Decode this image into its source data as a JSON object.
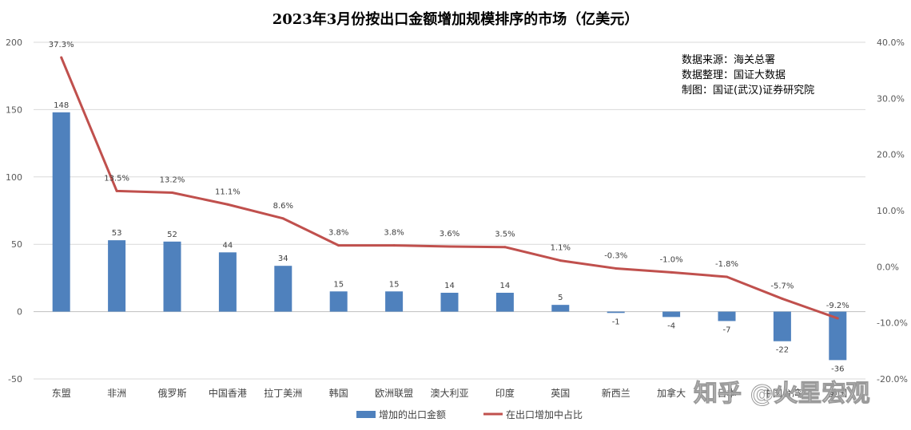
{
  "chart_data": {
    "type": "bar",
    "title": "2023年3月份按出口金额增加规模排序的市场（亿美元）",
    "categories": [
      "东盟",
      "非洲",
      "俄罗斯",
      "中国香港",
      "拉丁美洲",
      "韩国",
      "欧洲联盟",
      "澳大利亚",
      "印度",
      "英国",
      "新西兰",
      "加拿大",
      "日本",
      "中国台湾",
      "美国"
    ],
    "series": [
      {
        "name": "增加的出口金额",
        "type": "bar",
        "axis": "left",
        "color": "#4f81bd",
        "values": [
          148,
          53,
          52,
          44,
          34,
          15,
          15,
          14,
          14,
          5,
          -1,
          -4,
          -7,
          -22,
          -36
        ],
        "labels": [
          "148",
          "53",
          "52",
          "44",
          "34",
          "15",
          "15",
          "14",
          "14",
          "5",
          "-1",
          "-4",
          "-7",
          "-22",
          "-36"
        ]
      },
      {
        "name": "在出口增加中占比",
        "type": "line",
        "axis": "right",
        "color": "#c0504d",
        "values": [
          37.3,
          13.5,
          13.2,
          11.1,
          8.6,
          3.8,
          3.8,
          3.6,
          3.5,
          1.1,
          -0.3,
          -1.0,
          -1.8,
          -5.7,
          -9.2
        ],
        "labels": [
          "37.3%",
          "13.5%",
          "13.2%",
          "11.1%",
          "8.6%",
          "3.8%",
          "3.8%",
          "3.6%",
          "3.5%",
          "1.1%",
          "-0.3%",
          "-1.0%",
          "-1.8%",
          "-5.7%",
          "-9.2%"
        ]
      }
    ],
    "ylim": [
      -50,
      200
    ],
    "y_ticks": [
      "-50",
      "0",
      "50",
      "100",
      "150",
      "200"
    ],
    "y2lim": [
      -20,
      40
    ],
    "y2_ticks": [
      "-20.0%",
      "-10.0%",
      "0.0%",
      "10.0%",
      "20.0%",
      "30.0%",
      "40.0%"
    ],
    "grid": true,
    "legend_position": "bottom",
    "annotations": [
      "数据来源：海关总署",
      "数据整理：国证大数据",
      "制图：国证(武汉)证券研究院"
    ],
    "watermark": "知乎 @火星宏观"
  }
}
